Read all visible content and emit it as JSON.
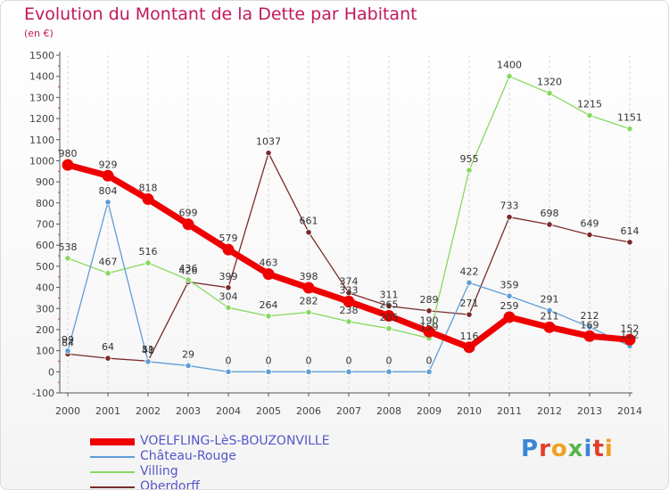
{
  "chart_data": {
    "type": "line",
    "title": "Evolution du Montant de la Dette par Habitant",
    "subtitle": "(en €)",
    "x": [
      "2000",
      "2001",
      "2002",
      "2003",
      "2004",
      "2005",
      "2006",
      "2007",
      "2008",
      "2009",
      "2010",
      "2011",
      "2012",
      "2013",
      "2014"
    ],
    "ylim": [
      -100,
      1500
    ],
    "yticks": [
      -100,
      0,
      100,
      200,
      300,
      400,
      500,
      600,
      700,
      800,
      900,
      1000,
      1100,
      1200,
      1300,
      1400,
      1500
    ],
    "grid": "vertical-dashed",
    "legend_position": "bottom-left",
    "series": [
      {
        "name": "VOELFLING-LèS-BOUZONVILLE",
        "color": "#ee0000",
        "values": [
          980,
          929,
          818,
          699,
          579,
          463,
          398,
          333,
          265,
          190,
          116,
          259,
          211,
          169,
          152
        ]
      },
      {
        "name": "Château-Rouge",
        "color": "#5f9dd6",
        "values": [
          99,
          804,
          48,
          29,
          0,
          0,
          0,
          0,
          0,
          0,
          422,
          359,
          291,
          212,
          122
        ]
      },
      {
        "name": "Villing",
        "color": "#86d95f",
        "values": [
          538,
          467,
          516,
          436,
          304,
          264,
          282,
          238,
          205,
          159,
          955,
          1400,
          1320,
          1215,
          1151
        ]
      },
      {
        "name": "Oberdorff",
        "color": "#7a2a2a",
        "values": [
          84,
          64,
          51,
          426,
          399,
          1037,
          661,
          374,
          311,
          289,
          271,
          733,
          698,
          649,
          614
        ]
      }
    ]
  },
  "branding": {
    "logo_text": [
      "P",
      "r",
      "o",
      "x",
      "i",
      "t",
      "i"
    ]
  }
}
